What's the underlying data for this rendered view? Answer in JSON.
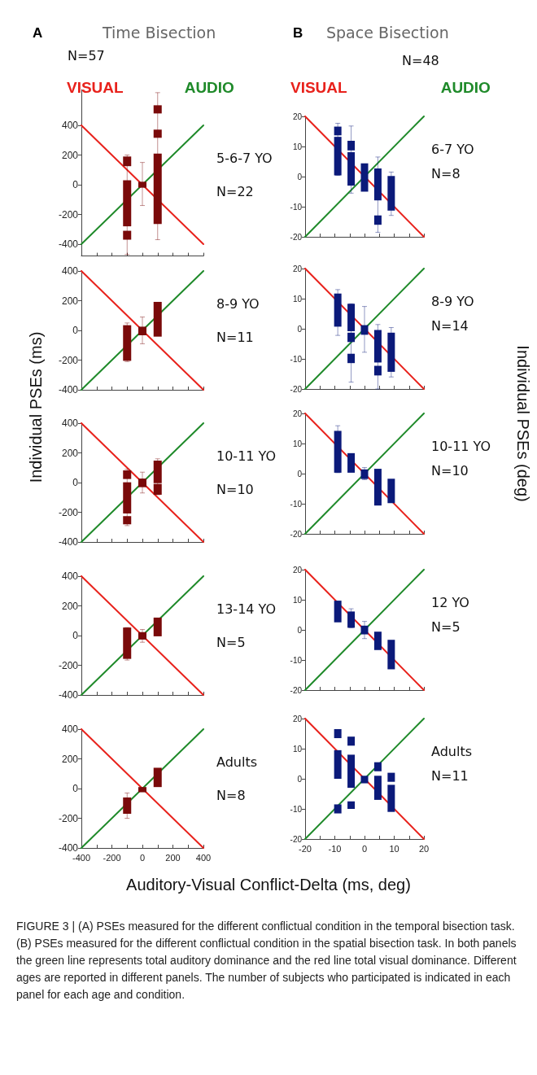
{
  "chart_data": [
    {
      "type": "bar",
      "title": "Time Bisection",
      "subtitle": "N=57",
      "legend": "top",
      "marker": "none",
      "line_style": "solid",
      "tick_labels": "y",
      "annotations": [
        "5-6-7 YO",
        "N=22",
        "A"
      ],
      "xlim": [
        -400,
        400
      ],
      "xticks": [
        -400,
        {
          "value": -300,
          "label": null
        },
        -200,
        {
          "value": -100,
          "label": null
        },
        0,
        {
          "value": 100,
          "label": null
        },
        200,
        {
          "value": 300,
          "label": null
        },
        400
      ],
      "ylim": [
        -480,
        640
      ],
      "yticks": [
        -400,
        -200,
        0,
        200,
        400
      ],
      "series": [
        {
          "type": "line",
          "name": "VISUAL",
          "color": "#e8221c",
          "x": [
            -400,
            400
          ],
          "values": [
            400,
            -400
          ]
        },
        {
          "type": "line",
          "name": "AUDIO",
          "color": "#1f8a2a",
          "x": [
            -400,
            400
          ],
          "values": [
            -400,
            400
          ]
        },
        {
          "type": "bar",
          "color": "#7a0a0a",
          "x": [
            -100,
            0,
            100
          ],
          "base": [
            -280,
            -20,
            -265
          ],
          "values": [
            310,
            40,
            475
          ],
          "errors": [
            [
              -470,
              200
            ],
            [
              -140,
              150
            ],
            [
              -370,
              620
            ]
          ]
        },
        {
          "type": "bar",
          "color": "#7a0a0a",
          "x": [
            -100,
            100
          ],
          "base": [
            125,
            480
          ],
          "values": [
            65,
            55
          ]
        },
        {
          "type": "bar",
          "color": "#7a0a0a",
          "x": [
            -100,
            100
          ],
          "base": [
            -370,
            316
          ],
          "values": [
            60,
            55
          ]
        }
      ]
    },
    {
      "type": "bar",
      "marker": "none",
      "line_style": "solid",
      "tick_labels": "y",
      "annotations": [
        "8-9 YO",
        "N=11"
      ],
      "xlim": [
        -400,
        400
      ],
      "xticks": [
        -400,
        {
          "value": -300,
          "label": null
        },
        -200,
        {
          "value": -100,
          "label": null
        },
        0,
        {
          "value": 100,
          "label": null
        },
        200,
        {
          "value": 300,
          "label": null
        },
        400
      ],
      "ylim": [
        -400,
        400
      ],
      "yticks": [
        -400,
        -200,
        0,
        200,
        400
      ],
      "series": [
        {
          "type": "line",
          "color": "#e8221c",
          "x": [
            -400,
            400
          ],
          "values": [
            400,
            -400
          ]
        },
        {
          "type": "line",
          "color": "#1f8a2a",
          "x": [
            -400,
            400
          ],
          "values": [
            -400,
            400
          ]
        },
        {
          "type": "bar",
          "color": "#7a0a0a",
          "x": [
            -100,
            0,
            100
          ],
          "base": [
            -205,
            -33,
            -42
          ],
          "values": [
            240,
            58,
            234
          ],
          "errors": [
            [
              -210,
              50
            ],
            [
              -90,
              90
            ],
            null
          ]
        }
      ]
    },
    {
      "type": "bar",
      "ylabel": "Individual PSEs (ms)",
      "marker": "none",
      "line_style": "solid",
      "tick_labels": "y",
      "annotations": [
        "10-11 YO",
        "N=10"
      ],
      "xlim": [
        -400,
        400
      ],
      "xticks": [
        -400,
        {
          "value": -300,
          "label": null
        },
        -200,
        {
          "value": -100,
          "label": null
        },
        0,
        {
          "value": 100,
          "label": null
        },
        200,
        {
          "value": 300,
          "label": null
        },
        400
      ],
      "ylim": [
        -400,
        400
      ],
      "yticks": [
        -400,
        -200,
        0,
        200,
        400
      ],
      "series": [
        {
          "type": "line",
          "color": "#e8221c",
          "x": [
            -400,
            400
          ],
          "values": [
            400,
            -400
          ]
        },
        {
          "type": "line",
          "color": "#1f8a2a",
          "x": [
            -400,
            400
          ],
          "values": [
            -400,
            400
          ]
        },
        {
          "type": "bar",
          "color": "#7a0a0a",
          "x": [
            -100,
            0,
            100
          ],
          "base": [
            -208,
            -31,
            -4
          ],
          "values": [
            210,
            58,
            152
          ],
          "errors": [
            [
              -290,
              90
            ],
            [
              -70,
              70
            ],
            [
              -82,
              160
            ]
          ]
        },
        {
          "type": "bar",
          "color": "#7a0a0a",
          "x": [
            -100,
            100
          ],
          "base": [
            24,
            -82
          ],
          "values": [
            58,
            73
          ]
        },
        {
          "type": "bar",
          "color": "#7a0a0a",
          "x": [
            -100
          ],
          "base": [
            -281
          ],
          "values": [
            55
          ]
        }
      ]
    },
    {
      "type": "bar",
      "marker": "none",
      "line_style": "solid",
      "tick_labels": "y",
      "annotations": [
        "13-14 YO",
        "N=5"
      ],
      "xlim": [
        -400,
        400
      ],
      "xticks": [
        -400,
        {
          "value": -300,
          "label": null
        },
        -200,
        {
          "value": -100,
          "label": null
        },
        0,
        {
          "value": 100,
          "label": null
        },
        200,
        {
          "value": 300,
          "label": null
        },
        400
      ],
      "ylim": [
        -400,
        400
      ],
      "yticks": [
        -400,
        -200,
        0,
        200,
        400
      ],
      "series": [
        {
          "type": "line",
          "color": "#e8221c",
          "x": [
            -400,
            400
          ],
          "values": [
            400,
            -400
          ]
        },
        {
          "type": "line",
          "color": "#1f8a2a",
          "x": [
            -400,
            400
          ],
          "values": [
            -400,
            400
          ]
        },
        {
          "type": "bar",
          "color": "#7a0a0a",
          "x": [
            -100,
            0,
            100
          ],
          "base": [
            -157,
            -27,
            -5
          ],
          "values": [
            211,
            50,
            126
          ],
          "errors": [
            [
              -165,
              54
            ],
            [
              -45,
              41
            ],
            null
          ]
        }
      ]
    },
    {
      "type": "bar",
      "xlabel": "Auditory-Visual Conflict-Delta (ms, deg)",
      "marker": "none",
      "line_style": "solid",
      "annotations": [
        "Adults",
        "N=8"
      ],
      "xlim": [
        -400,
        400
      ],
      "xticks": [
        -400,
        {
          "value": -300,
          "label": null
        },
        -200,
        {
          "value": -100,
          "label": null
        },
        0,
        {
          "value": 100,
          "label": null
        },
        200,
        {
          "value": 300,
          "label": null
        },
        400
      ],
      "ylim": [
        -400,
        400
      ],
      "yticks": [
        -400,
        -200,
        0,
        200,
        400
      ],
      "series": [
        {
          "type": "line",
          "color": "#e8221c",
          "x": [
            -400,
            400
          ],
          "values": [
            400,
            -400
          ]
        },
        {
          "type": "line",
          "color": "#1f8a2a",
          "x": [
            -400,
            400
          ],
          "values": [
            -400,
            400
          ]
        },
        {
          "type": "bar",
          "color": "#7a0a0a",
          "x": [
            -100,
            0,
            100
          ],
          "base": [
            -170,
            -25,
            10
          ],
          "values": [
            110,
            35,
            130
          ],
          "errors": [
            [
              -200,
              -30
            ],
            null,
            null
          ]
        }
      ]
    },
    {
      "type": "bar",
      "title": "Space Bisection",
      "subtitle": "N=48",
      "legend": "top",
      "marker": "none",
      "line_style": "solid",
      "tick_labels": "y",
      "annotations": [
        "6-7 YO",
        "N=8",
        "B"
      ],
      "xlim": [
        -20,
        20
      ],
      "xticks": [
        -20,
        {
          "value": -15,
          "label": null
        },
        -10,
        {
          "value": -5,
          "label": null
        },
        0,
        {
          "value": 5,
          "label": null
        },
        10,
        {
          "value": 15,
          "label": null
        },
        20
      ],
      "ylim": [
        -20,
        20
      ],
      "yticks": [
        -20,
        -10,
        0,
        10,
        20
      ],
      "series": [
        {
          "type": "line",
          "name": "VISUAL",
          "color": "#e8221c",
          "x": [
            -20,
            20
          ],
          "values": [
            20,
            -20
          ]
        },
        {
          "type": "line",
          "name": "AUDIO",
          "color": "#1f8a2a",
          "x": [
            -20,
            20
          ],
          "values": [
            -20,
            20
          ]
        },
        {
          "type": "bar",
          "color": "#0b1a7a",
          "x": [
            -9,
            -4.5,
            0,
            4.5,
            9
          ],
          "base": [
            0.4,
            -3,
            -5,
            -7.9,
            -11.3
          ],
          "values": [
            12.8,
            11.1,
            9.4,
            10.6,
            11.5
          ],
          "errors": [
            [
              0.4,
              17.7
            ],
            [
              -5.5,
              16.8
            ],
            null,
            [
              -18.5,
              6.5
            ],
            [
              -12.9,
              1.5
            ]
          ]
        },
        {
          "type": "bar",
          "color": "#0b1a7a",
          "x": [
            -9,
            -4.5,
            4.5
          ],
          "base": [
            13.7,
            8.7,
            -16
          ],
          "values": [
            2.9,
            3.2,
            3.1
          ]
        }
      ]
    },
    {
      "type": "bar",
      "marker": "none",
      "line_style": "solid",
      "tick_labels": "y",
      "annotations": [
        "8-9 YO",
        "N=14"
      ],
      "xlim": [
        -20,
        20
      ],
      "xticks": [
        -20,
        {
          "value": -15,
          "label": null
        },
        -10,
        {
          "value": -5,
          "label": null
        },
        0,
        {
          "value": 5,
          "label": null
        },
        10,
        {
          "value": 15,
          "label": null
        },
        20
      ],
      "ylim": [
        -20,
        20
      ],
      "yticks": [
        -20,
        -10,
        0,
        10,
        20
      ],
      "series": [
        {
          "type": "line",
          "color": "#e8221c",
          "x": [
            -20,
            20
          ],
          "values": [
            20,
            -20
          ]
        },
        {
          "type": "line",
          "color": "#1f8a2a",
          "x": [
            -20,
            20
          ],
          "values": [
            -20,
            20
          ]
        },
        {
          "type": "bar",
          "color": "#0b1a7a",
          "x": [
            -9,
            -4.5,
            0,
            4.5,
            9
          ],
          "base": [
            0.7,
            -0.8,
            -2,
            -11.2,
            -14.3
          ],
          "values": [
            11,
            9.1,
            3.2,
            10.8,
            13
          ],
          "errors": [
            [
              -2.2,
              13
            ],
            [
              -17.7,
              8.3
            ],
            [
              -7.8,
              7.4
            ],
            [
              -20,
              1.4
            ],
            [
              -16,
              0.4
            ]
          ]
        },
        {
          "type": "bar",
          "color": "#0b1a7a",
          "x": [
            -4.5,
            4.5
          ],
          "base": [
            -4.4,
            -15.5
          ],
          "values": [
            3.1,
            3.2
          ]
        },
        {
          "type": "bar",
          "color": "#0b1a7a",
          "x": [
            -4.5
          ],
          "base": [
            -11.4
          ],
          "values": [
            3.1
          ]
        }
      ]
    },
    {
      "type": "bar",
      "ylabel": "Individual PSEs (deg)",
      "marker": "none",
      "line_style": "solid",
      "tick_labels": "y",
      "annotations": [
        "10-11 YO",
        "N=10"
      ],
      "xlim": [
        -20,
        20
      ],
      "xticks": [
        -20,
        {
          "value": -15,
          "label": null
        },
        -10,
        {
          "value": -5,
          "label": null
        },
        0,
        {
          "value": 5,
          "label": null
        },
        10,
        {
          "value": 15,
          "label": null
        },
        20
      ],
      "ylim": [
        -20,
        20
      ],
      "yticks": [
        -20,
        -10,
        0,
        10,
        20
      ],
      "series": [
        {
          "type": "line",
          "color": "#e8221c",
          "x": [
            -20,
            20
          ],
          "values": [
            20,
            -20
          ]
        },
        {
          "type": "line",
          "color": "#1f8a2a",
          "x": [
            -20,
            20
          ],
          "values": [
            -20,
            20
          ]
        },
        {
          "type": "bar",
          "color": "#0b1a7a",
          "x": [
            -9,
            -4.5,
            0,
            4.5,
            9
          ],
          "base": [
            0.3,
            0.3,
            -1.8,
            -10.6,
            -9.8
          ],
          "values": [
            13.9,
            6.5,
            3.2,
            12.2,
            8.1
          ],
          "errors": [
            [
              0.3,
              15.9
            ],
            null,
            [
              -2,
              2
            ],
            null,
            null
          ]
        }
      ]
    },
    {
      "type": "bar",
      "marker": "none",
      "line_style": "solid",
      "tick_labels": "y",
      "annotations": [
        "12 YO",
        "N=5"
      ],
      "xlim": [
        -20,
        20
      ],
      "xticks": [
        -20,
        {
          "value": -15,
          "label": null
        },
        -10,
        {
          "value": -5,
          "label": null
        },
        0,
        {
          "value": 5,
          "label": null
        },
        10,
        {
          "value": 15,
          "label": null
        },
        20
      ],
      "ylim": [
        -20,
        20
      ],
      "yticks": [
        -20,
        -10,
        0,
        10,
        20
      ],
      "series": [
        {
          "type": "line",
          "color": "#e8221c",
          "x": [
            -20,
            20
          ],
          "values": [
            20,
            -20
          ]
        },
        {
          "type": "line",
          "color": "#1f8a2a",
          "x": [
            -20,
            20
          ],
          "values": [
            -20,
            20
          ]
        },
        {
          "type": "bar",
          "color": "#0b1a7a",
          "x": [
            -9,
            -4.5,
            0,
            4.5,
            9
          ],
          "base": [
            2.5,
            0.7,
            -1.5,
            -6.7,
            -13.1
          ],
          "values": [
            7.2,
            5.4,
            2.9,
            6.1,
            9.8
          ],
          "errors": [
            null,
            [
              0.7,
              7
            ],
            [
              -2.9,
              2.8
            ],
            null,
            null
          ]
        }
      ]
    },
    {
      "type": "bar",
      "marker": "none",
      "line_style": "solid",
      "annotations": [
        "Adults",
        "N=11",
        "FIGURE 3 | (A) PSEs measured for the different conflictual condition in the temporal bisection task. (B) PSEs measured for the different conflictual condition in the spatial bisection task. In both panels the green line represents total auditory dominance and the red line total visual dominance. Different ages are reported in different panels. The number of subjects who participated is indicated in each panel for each age and condition."
      ],
      "xlim": [
        -20,
        20
      ],
      "xticks": [
        -20,
        {
          "value": -15,
          "label": null
        },
        -10,
        {
          "value": -5,
          "label": null
        },
        0,
        {
          "value": 5,
          "label": null
        },
        10,
        {
          "value": 15,
          "label": null
        },
        20
      ],
      "ylim": [
        -20,
        20
      ],
      "yticks": [
        -20,
        -10,
        0,
        10,
        20
      ],
      "series": [
        {
          "type": "line",
          "color": "#e8221c",
          "x": [
            -20,
            20
          ],
          "values": [
            20,
            -20
          ]
        },
        {
          "type": "line",
          "color": "#1f8a2a",
          "x": [
            -20,
            20
          ],
          "values": [
            -20,
            20
          ]
        },
        {
          "type": "bar",
          "color": "#0b1a7a",
          "x": [
            -9,
            -4.5,
            0,
            4.5,
            9
          ],
          "base": [
            0,
            -3,
            -1.5,
            -7,
            -11
          ],
          "values": [
            9.5,
            11,
            2.5,
            8,
            9
          ]
        },
        {
          "type": "bar",
          "color": "#0b1a7a",
          "x": [
            -9,
            -4.5,
            4.5,
            9
          ],
          "base": [
            13.5,
            11,
            2.5,
            -1
          ],
          "values": [
            3,
            3,
            3,
            3
          ]
        },
        {
          "type": "bar",
          "color": "#0b1a7a",
          "x": [
            -9,
            -4.5
          ],
          "base": [
            -11.5,
            -10
          ],
          "values": [
            3,
            2.5
          ]
        }
      ]
    }
  ]
}
